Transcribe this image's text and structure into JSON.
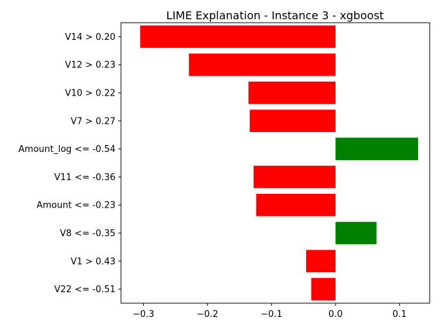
{
  "chart_data": {
    "type": "bar",
    "orientation": "horizontal",
    "title": "LIME Explanation - Instance 3 - xgboost",
    "xlabel": "",
    "ylabel": "",
    "xlim": [
      -0.335,
      0.147
    ],
    "grid": false,
    "legend": "none",
    "colors": {
      "positive": "#008000",
      "negative": "#ff0000"
    },
    "xticks": [
      {
        "value": -0.3,
        "label": "−0.3"
      },
      {
        "value": -0.2,
        "label": "−0.2"
      },
      {
        "value": -0.1,
        "label": "−0.1"
      },
      {
        "value": 0.0,
        "label": "0.0"
      },
      {
        "value": 0.1,
        "label": "0.1"
      }
    ],
    "categories": [
      "V14 > 0.20",
      "V12 > 0.23",
      "V10 > 0.22",
      "V7 > 0.27",
      "Amount_log <= -0.54",
      "V11 <= -0.36",
      "Amount <= -0.23",
      "V8 <= -0.35",
      "V1 > 0.43",
      "V22 <= -0.51"
    ],
    "values": [
      -0.305,
      -0.229,
      -0.136,
      -0.134,
      0.129,
      -0.128,
      -0.124,
      0.064,
      -0.046,
      -0.038
    ]
  }
}
